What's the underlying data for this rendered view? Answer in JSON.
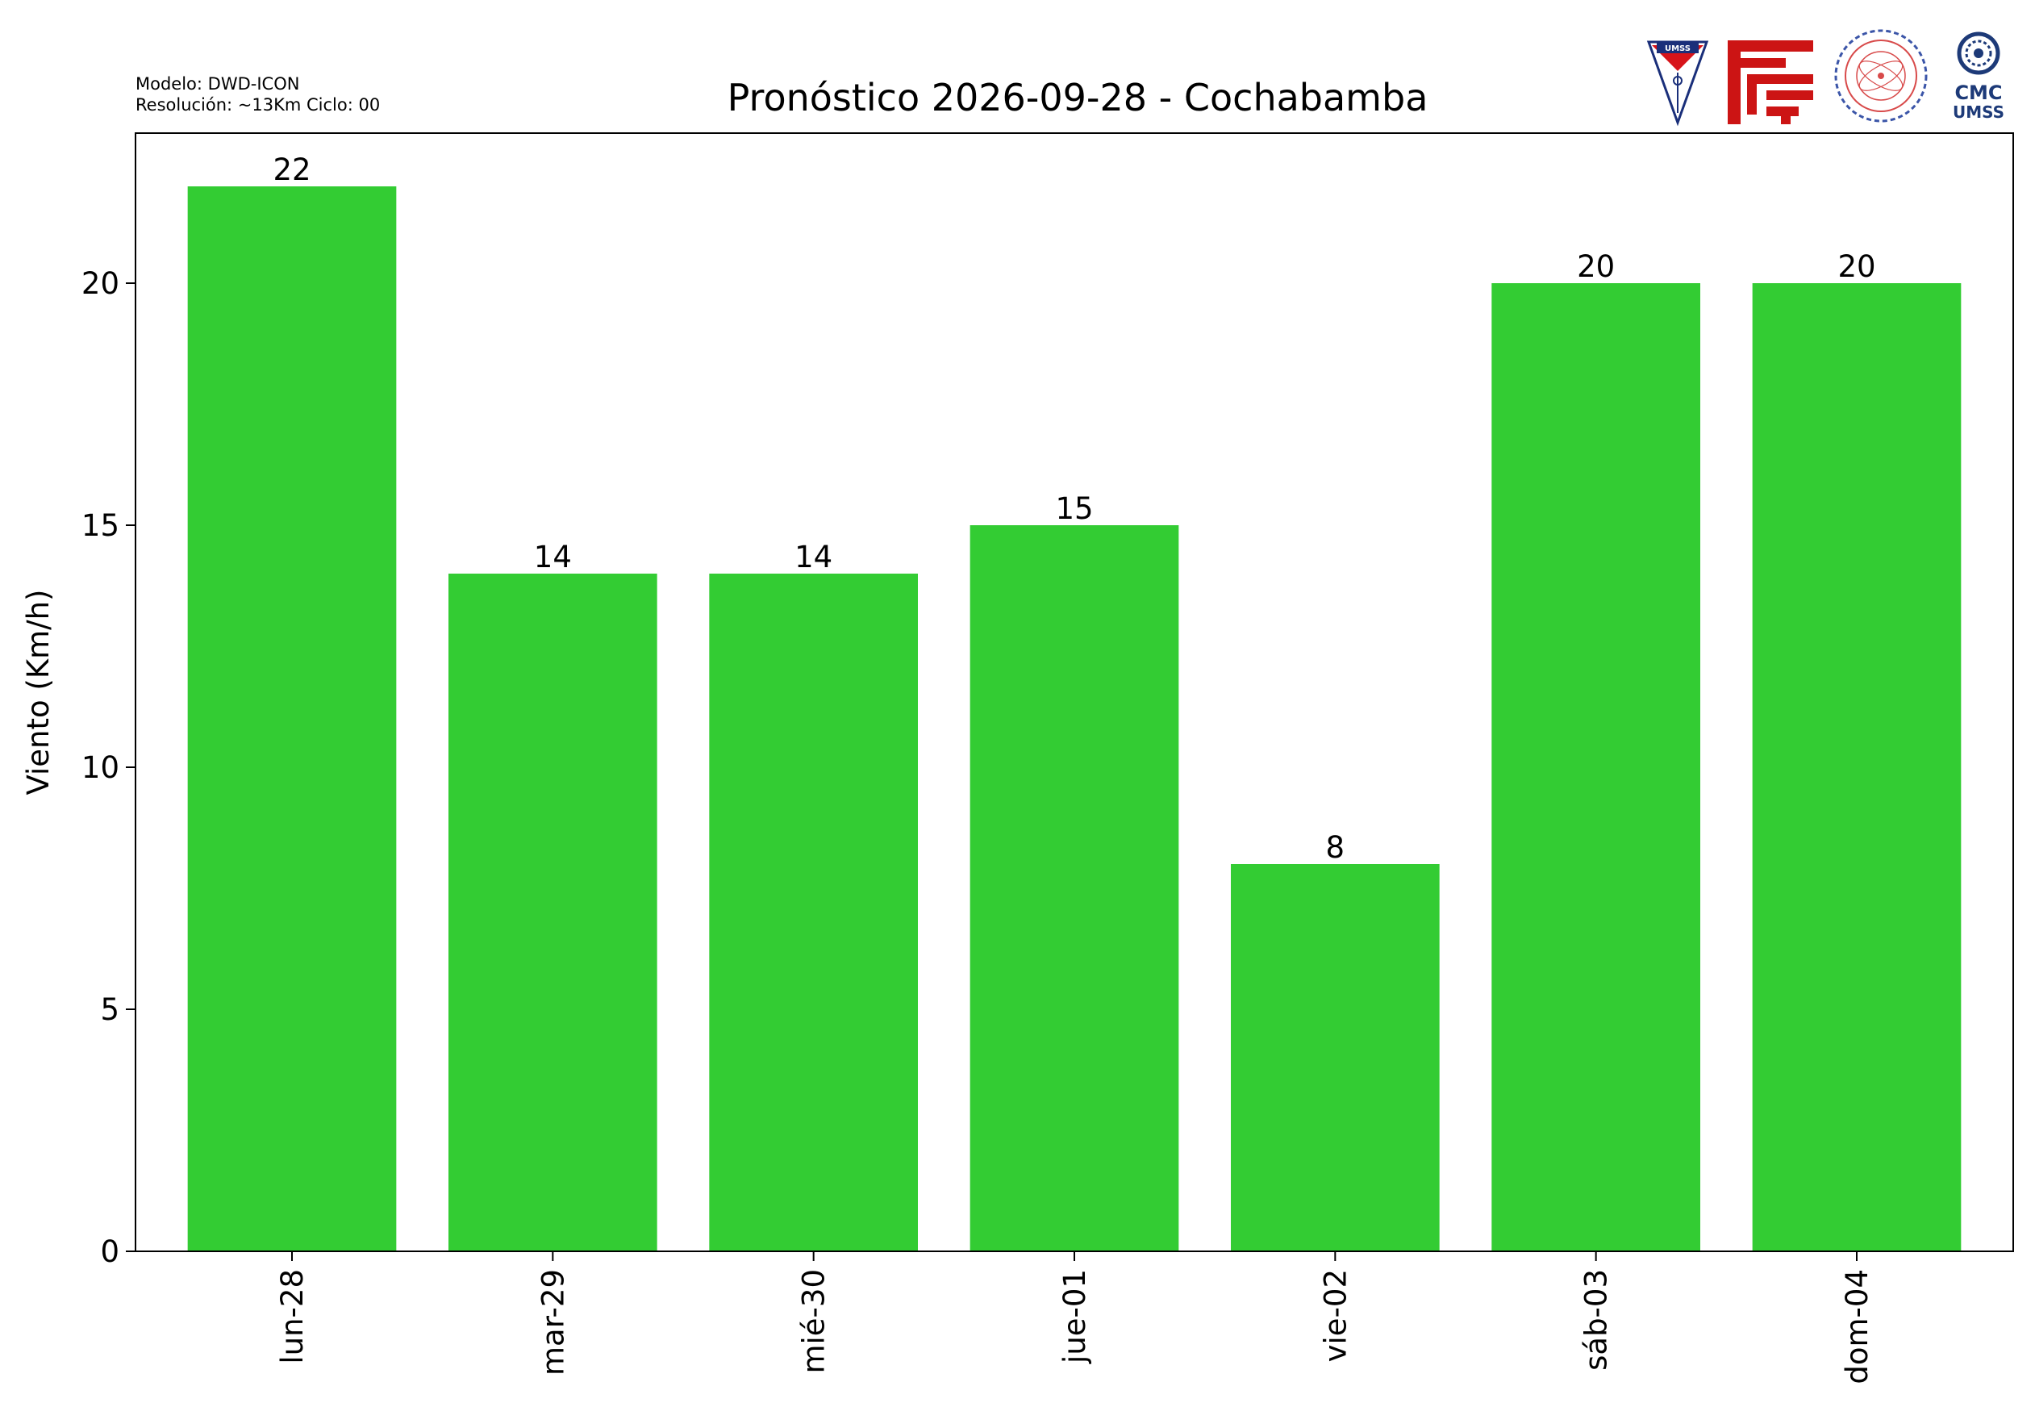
{
  "meta": {
    "model": "Modelo: DWD-ICON",
    "resolution": "Resolución: ~13Km Ciclo: 00"
  },
  "logos": {
    "umss_text": "UMSS",
    "cmc_line1": "CMC",
    "cmc_line2": "UMSS"
  },
  "colors": {
    "bar": "#33cc33",
    "umss_red": "#d7141a",
    "umss_blue": "#1a2f7a",
    "fcyt_red": "#cc1414",
    "dept_red": "#d84a4a",
    "dept_blue": "#3b55a8",
    "cmc_blue": "#1d3a78"
  },
  "chart_data": {
    "type": "bar",
    "title": "Pronóstico 2026-09-28 - Cochabamba",
    "xlabel": "",
    "ylabel": "Viento (Km/h)",
    "categories": [
      "lun-28",
      "mar-29",
      "mié-30",
      "jue-01",
      "vie-02",
      "sáb-03",
      "dom-04"
    ],
    "values": [
      22,
      14,
      14,
      15,
      8,
      20,
      20
    ],
    "ylim": [
      0,
      23.1
    ],
    "yticks": [
      0,
      5,
      10,
      15,
      20
    ],
    "grid": false,
    "legend": false
  }
}
